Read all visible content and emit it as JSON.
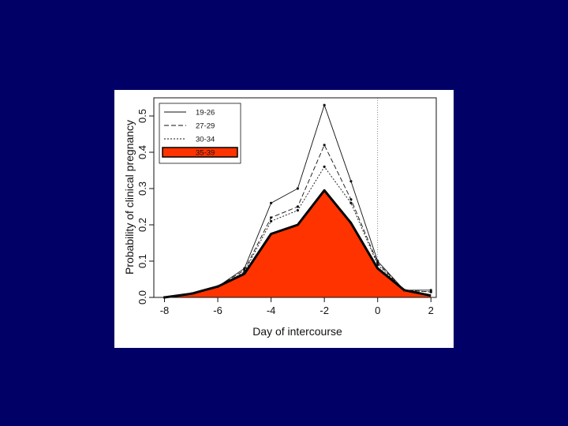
{
  "chart_data": {
    "type": "area",
    "title": "",
    "xlabel": "Day of intercourse",
    "ylabel": "Probability of  clinical  pregnancy",
    "x": [
      -8,
      -7,
      -6,
      -5,
      -4,
      -3,
      -2,
      -1,
      0,
      1,
      2
    ],
    "xticks": [
      -8,
      -6,
      -4,
      -2,
      0,
      2
    ],
    "yticks": [
      "0.0",
      "0.1",
      "0.2",
      "0.3",
      "0.4",
      "0.5"
    ],
    "xlim": [
      -8.4,
      2.2
    ],
    "ylim": [
      0,
      0.55
    ],
    "reference_line_x": 0,
    "legend_position": "top-left",
    "series": [
      {
        "name": "19-26",
        "style": "solid",
        "values": [
          0.0,
          0.01,
          0.03,
          0.08,
          0.26,
          0.3,
          0.53,
          0.32,
          0.1,
          0.02,
          0.02
        ]
      },
      {
        "name": "27-29",
        "style": "dashed",
        "values": [
          0.0,
          0.01,
          0.03,
          0.075,
          0.22,
          0.25,
          0.42,
          0.27,
          0.095,
          0.02,
          0.015
        ]
      },
      {
        "name": "30-34",
        "style": "dotted",
        "values": [
          0.0,
          0.01,
          0.03,
          0.07,
          0.21,
          0.24,
          0.36,
          0.26,
          0.09,
          0.02,
          0.015
        ]
      },
      {
        "name": "35-39",
        "style": "filled",
        "values": [
          0.0,
          0.01,
          0.03,
          0.065,
          0.175,
          0.2,
          0.295,
          0.205,
          0.08,
          0.02,
          0.005
        ]
      }
    ],
    "colors": {
      "fill": "#ff3300",
      "line": "#000000",
      "background": "#000066",
      "panel": "#ffffff"
    }
  }
}
